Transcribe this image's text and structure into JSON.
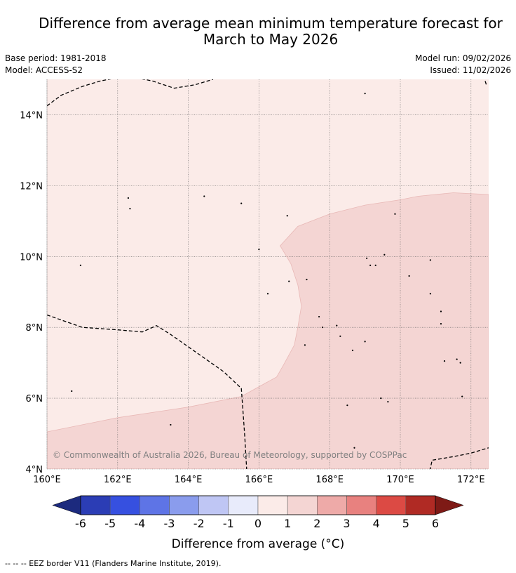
{
  "title_line1": "Difference from average mean minimum temperature forecast for",
  "title_line2": "March to May 2026",
  "base_period": "Base period: 1981-2018",
  "model": "Model: ACCESS-S2",
  "model_run": "Model run: 09/02/2026",
  "issued": "Issued: 11/02/2026",
  "copyright": "© Commonwealth of Australia 2026, Bureau of Meteorology, supported by COSPPac",
  "footer": "-- -- -- EEZ border V11 (Flanders Marine Institute, 2019).",
  "colors": {
    "zone_0_1": "#fbebe8",
    "zone_1_2": "#f4d5d3",
    "zone_edge": "#e8b8b6"
  },
  "chart_data": {
    "type": "heatmap",
    "subtype": "map",
    "x_axis": {
      "range": [
        160,
        172.5
      ],
      "ticks": [
        160,
        162,
        164,
        166,
        168,
        170,
        172
      ],
      "labels": [
        "160°E",
        "162°E",
        "164°E",
        "166°E",
        "168°E",
        "170°E",
        "172°E"
      ]
    },
    "y_axis": {
      "range": [
        4,
        15
      ],
      "ticks": [
        4,
        6,
        8,
        10,
        12,
        14
      ],
      "labels": [
        "4°N",
        "6°N",
        "8°N",
        "10°N",
        "12°N",
        "14°N"
      ]
    },
    "grid": true,
    "regions": [
      {
        "name": "0 to 1 °C above average",
        "category": "0-1",
        "location": "north-west"
      },
      {
        "name": "1 to 2 °C above average",
        "category": "1-2",
        "location": "south and east"
      }
    ],
    "zone_boundary": [
      [
        160,
        5.05
      ],
      [
        162,
        5.45
      ],
      [
        164,
        5.75
      ],
      [
        165.5,
        6.05
      ],
      [
        166.5,
        6.6
      ],
      [
        166.7,
        6.95
      ],
      [
        167.0,
        7.5
      ],
      [
        167.1,
        8.0
      ],
      [
        167.2,
        8.6
      ],
      [
        167.1,
        9.2
      ],
      [
        166.9,
        9.8
      ],
      [
        166.6,
        10.3
      ],
      [
        167.1,
        10.85
      ],
      [
        168.0,
        11.2
      ],
      [
        169.0,
        11.45
      ],
      [
        170.0,
        11.6
      ],
      [
        170.5,
        11.7
      ],
      [
        171.5,
        11.8
      ],
      [
        172.5,
        11.75
      ]
    ],
    "eez_borders": [
      [
        [
          160,
          14.25
        ],
        [
          160.4,
          14.55
        ],
        [
          161.0,
          14.8
        ],
        [
          161.5,
          14.95
        ],
        [
          162.0,
          15.05
        ],
        [
          162.5,
          15.05
        ],
        [
          163.0,
          14.95
        ],
        [
          163.3,
          14.85
        ],
        [
          163.6,
          14.75
        ],
        [
          164.2,
          14.85
        ],
        [
          164.7,
          15.0
        ]
      ],
      [
        [
          160,
          8.35
        ],
        [
          161.0,
          8.0
        ],
        [
          162.0,
          7.93
        ],
        [
          162.7,
          7.87
        ],
        [
          163.1,
          8.05
        ],
        [
          163.5,
          7.8
        ],
        [
          164.0,
          7.45
        ],
        [
          164.5,
          7.1
        ],
        [
          165.0,
          6.75
        ],
        [
          165.5,
          6.28
        ],
        [
          165.55,
          5.6
        ],
        [
          165.6,
          4.9
        ],
        [
          165.65,
          4.0
        ]
      ],
      [
        [
          170.8,
          3.8
        ],
        [
          170.9,
          4.25
        ],
        [
          171.5,
          4.35
        ],
        [
          172.0,
          4.45
        ],
        [
          172.5,
          4.6
        ]
      ],
      [
        [
          172.4,
          14.95
        ],
        [
          172.45,
          14.8
        ]
      ]
    ],
    "colorbar": {
      "label": "Difference from average (°C)",
      "ticks": [
        -6,
        -5,
        -4,
        -3,
        -2,
        -1,
        0,
        1,
        2,
        3,
        4,
        5,
        6
      ],
      "tick_labels": [
        "-6",
        "-5",
        "-4",
        "-3",
        "-2",
        "-1",
        "0",
        "1",
        "2",
        "3",
        "4",
        "5",
        "6"
      ],
      "colors": [
        "#2b3db5",
        "#3650e0",
        "#5e74e6",
        "#8a9ced",
        "#bfc6f4",
        "#e8ebfb",
        "#fbebe8",
        "#f4d5d3",
        "#eeaaa8",
        "#e8817f",
        "#dc4a44",
        "#b02a24"
      ],
      "under_color": "#1c2a7e",
      "over_color": "#7e1a16",
      "extend": "both"
    }
  }
}
